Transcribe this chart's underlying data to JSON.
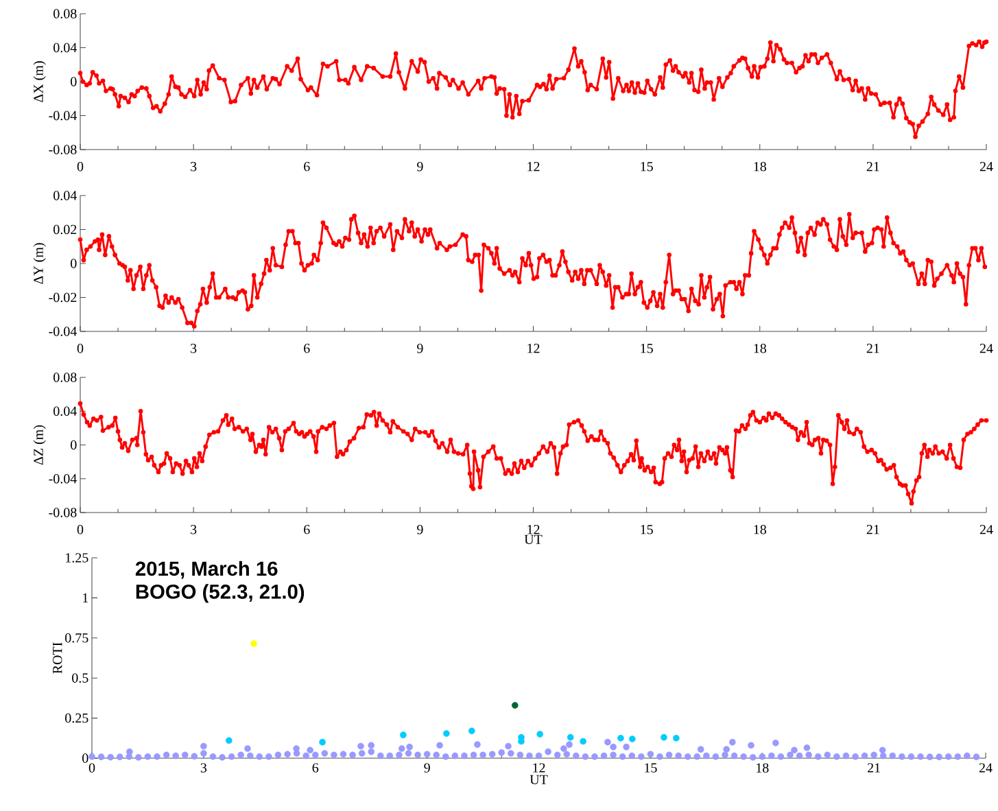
{
  "chart_data": [
    {
      "type": "line",
      "ylabel": "ΔX (m)",
      "xlim": [
        0,
        24
      ],
      "ylim": [
        -0.08,
        0.08
      ],
      "xticks": [
        0,
        3,
        6,
        9,
        12,
        15,
        18,
        21,
        24
      ],
      "yticks": [
        -0.08,
        -0.04,
        0,
        0.04,
        0.08
      ],
      "marker": "circle",
      "series": [
        {
          "color": "#ff0000",
          "x": [
            0,
            0.07,
            0.17,
            0.25,
            0.33,
            0.43,
            0.5,
            0.6,
            0.68,
            0.8,
            0.86,
            0.92,
            1.02,
            1.07,
            1.18,
            1.28,
            1.36,
            1.44,
            1.52,
            1.63,
            1.75,
            1.83,
            1.93,
            2.02,
            2.12,
            2.24,
            2.34,
            2.42,
            2.52,
            2.6,
            2.68,
            2.78,
            2.91,
            3.02,
            3.1,
            3.19,
            3.27,
            3.35,
            3.41,
            3.51,
            3.68,
            3.82,
            3.99,
            4.1,
            4.26,
            4.44,
            4.52,
            4.6,
            4.69,
            4.85,
            4.94,
            5.1,
            5.18,
            5.28,
            5.48,
            5.6,
            5.76,
            5.84,
            6.03,
            6.11,
            6.27,
            6.43,
            6.55,
            6.78,
            6.86,
            7.02,
            7.1,
            7.26,
            7.44,
            7.6,
            7.77,
            8.01,
            8.21,
            8.36,
            8.44,
            8.6,
            8.78,
            8.94,
            9.02,
            9.12,
            9.23,
            9.35,
            9.45,
            9.51,
            9.68,
            9.79,
            9.87,
            10.02,
            10.13,
            10.28,
            10.54,
            10.62,
            10.71,
            10.89,
            10.97,
            11.03,
            11.11,
            11.23,
            11.29,
            11.37,
            11.45,
            11.55,
            11.63,
            11.71,
            11.88,
            12.1,
            12.18,
            12.27,
            12.35,
            12.43,
            12.51,
            12.61,
            12.81,
            12.93,
            13.09,
            13.19,
            13.27,
            13.36,
            13.44,
            13.52,
            13.68,
            13.84,
            13.93,
            14.01,
            14.11,
            14.25,
            14.38,
            14.47,
            14.53,
            14.61,
            14.69,
            14.77,
            14.85,
            14.94,
            15.02,
            15.12,
            15.22,
            15.36,
            15.43,
            15.51,
            15.62,
            15.7,
            15.77,
            15.85,
            15.97,
            16.03,
            16.13,
            16.19,
            16.27,
            16.37,
            16.45,
            16.54,
            16.6,
            16.7,
            16.78,
            16.92,
            17.01,
            17.14,
            17.23,
            17.31,
            17.46,
            17.54,
            17.61,
            17.69,
            17.79,
            17.85,
            17.95,
            18.02,
            18.12,
            18.2,
            18.28,
            18.36,
            18.44,
            18.54,
            18.64,
            18.72,
            18.85,
            18.96,
            19.05,
            19.13,
            19.21,
            19.29,
            19.37,
            19.46,
            19.54,
            19.64,
            19.78,
            19.88,
            20.04,
            20.12,
            20.22,
            20.36,
            20.46,
            20.54,
            20.62,
            20.7,
            20.79,
            20.87,
            20.95,
            21.07,
            21.2,
            21.3,
            21.44,
            21.54,
            21.62,
            21.7,
            21.78,
            21.88,
            21.97,
            22.05,
            22.12,
            22.21,
            22.31,
            22.45,
            22.54,
            22.62,
            22.73,
            22.86,
            22.96,
            23.04,
            23.14,
            23.18,
            23.28,
            23.38,
            23.54,
            23.63,
            23.73,
            23.81,
            23.89,
            23.95,
            24
          ],
          "values": [
            0.01,
            0,
            -0.004,
            -0.002,
            0.011,
            0.007,
            -0.002,
            0.001,
            -0.011,
            -0.008,
            -0.009,
            -0.015,
            -0.029,
            -0.017,
            -0.019,
            -0.024,
            -0.015,
            -0.017,
            -0.011,
            -0.007,
            -0.008,
            -0.017,
            -0.031,
            -0.029,
            -0.035,
            -0.026,
            -0.015,
            0.006,
            -0.006,
            -0.007,
            -0.015,
            -0.018,
            -0.01,
            -0.017,
            0.002,
            -0.015,
            -0.001,
            -0.009,
            0.013,
            0.019,
            0.004,
            0.002,
            -0.024,
            -0.023,
            -0.004,
            0.004,
            -0.014,
            0.002,
            -0.007,
            0.006,
            -0.009,
            0.004,
            0.003,
            -0.003,
            0.018,
            0.013,
            0.027,
            0.003,
            -0.01,
            -0.007,
            -0.016,
            0.021,
            0.018,
            0.024,
            0.002,
            0.002,
            -0.002,
            0.017,
            0.002,
            0.018,
            0.016,
            0.006,
            0.006,
            0.033,
            0.011,
            -0.008,
            0.024,
            0.012,
            0.026,
            0.023,
            0,
            0.004,
            -0.008,
            0.01,
            0.005,
            -0.004,
            0.002,
            -0.008,
            -0.001,
            -0.015,
            0.001,
            -0.008,
            0.004,
            0.006,
            0.005,
            -0.014,
            -0.008,
            -0.009,
            -0.04,
            -0.015,
            -0.042,
            -0.017,
            -0.038,
            -0.023,
            -0.022,
            -0.004,
            -0.006,
            -0.003,
            -0.009,
            0.007,
            -0.008,
            0.003,
            0.004,
            0.014,
            0.039,
            0.018,
            0.024,
            0.011,
            -0.01,
            -0.004,
            -0.009,
            0.027,
            0.005,
            0.023,
            -0.02,
            0.004,
            -0.011,
            -0.004,
            -0.011,
            -0.001,
            -0.013,
            -0.002,
            -0.012,
            -0.013,
            0.001,
            -0.009,
            -0.015,
            0.005,
            -0.007,
            0.02,
            0.025,
            0.013,
            0.018,
            0.011,
            0.006,
            0.01,
            -0.001,
            0.01,
            -0.01,
            -0.012,
            0.014,
            -0.008,
            -0.001,
            -0.001,
            -0.021,
            0.004,
            -0.006,
            0.005,
            0.01,
            0.018,
            0.025,
            0.028,
            0.027,
            0.016,
            0.006,
            0.018,
            0.005,
            0.017,
            0.018,
            0.027,
            0.046,
            0.024,
            0.043,
            0.038,
            0.026,
            0.022,
            0.022,
            0.011,
            0.016,
            0.018,
            0.031,
            0.024,
            0.032,
            0.032,
            0.022,
            0.028,
            0.032,
            0.022,
            0.003,
            0.012,
            0.002,
            0.003,
            -0.01,
            0.001,
            -0.011,
            -0.008,
            -0.021,
            -0.008,
            -0.014,
            -0.015,
            -0.027,
            -0.025,
            -0.025,
            -0.042,
            -0.027,
            -0.02,
            -0.026,
            -0.043,
            -0.048,
            -0.05,
            -0.065,
            -0.052,
            -0.047,
            -0.038,
            -0.018,
            -0.027,
            -0.034,
            -0.039,
            -0.027,
            -0.045,
            -0.042,
            -0.011,
            0.006,
            -0.007,
            0.042,
            0.045,
            0.043,
            0.047,
            0.041,
            0.046,
            0.047
          ]
        }
      ]
    },
    {
      "type": "line",
      "ylabel": "ΔY (m)",
      "xlim": [
        0,
        24
      ],
      "ylim": [
        -0.04,
        0.04
      ],
      "xticks": [
        0,
        3,
        6,
        9,
        12,
        15,
        18,
        21,
        24
      ],
      "yticks": [
        -0.04,
        -0.02,
        0,
        0.02,
        0.04
      ],
      "marker": "circle",
      "series": [
        {
          "color": "#ff0000",
          "x": [
            0,
            0.09,
            0.17,
            0.27,
            0.39,
            0.47,
            0.5,
            0.58,
            0.66,
            0.76,
            0.84,
            0.92,
            1.04,
            1.12,
            1.18,
            1.26,
            1.33,
            1.41,
            1.49,
            1.59,
            1.67,
            1.75,
            1.83,
            1.91,
            2.01,
            2.1,
            2.18,
            2.26,
            2.34,
            2.42,
            2.52,
            2.6,
            2.7,
            2.84,
            2.94,
            3.02,
            3.1,
            3.18,
            3.25,
            3.35,
            3.43,
            3.51,
            3.6,
            3.68,
            3.84,
            3.92,
            4.04,
            4.12,
            4.2,
            4.3,
            4.36,
            4.44,
            4.53,
            4.6,
            4.69,
            4.79,
            4.87,
            4.93,
            5.02,
            5.1,
            5.18,
            5.34,
            5.44,
            5.52,
            5.62,
            5.7,
            5.78,
            5.86,
            5.94,
            6.03,
            6.13,
            6.19,
            6.29,
            6.37,
            6.43,
            6.52,
            6.71,
            6.78,
            6.86,
            6.94,
            7.02,
            7.12,
            7.18,
            7.26,
            7.36,
            7.44,
            7.52,
            7.61,
            7.69,
            7.77,
            7.85,
            7.95,
            8.05,
            8.21,
            8.29,
            8.39,
            8.52,
            8.6,
            8.71,
            8.78,
            8.86,
            8.94,
            9.04,
            9.13,
            9.21,
            9.27,
            9.45,
            9.52,
            9.71,
            9.79,
            9.94,
            10.13,
            10.22,
            10.28,
            10.38,
            10.46,
            10.55,
            10.62,
            10.69,
            10.81,
            10.89,
            10.97,
            11.03,
            11.11,
            11.23,
            11.37,
            11.45,
            11.52,
            11.63,
            11.71,
            11.8,
            11.88,
            11.94,
            12.01,
            12.1,
            12.16,
            12.26,
            12.35,
            12.43,
            12.51,
            12.59,
            12.69,
            12.77,
            12.85,
            12.93,
            13.03,
            13.11,
            13.19,
            13.27,
            13.35,
            13.43,
            13.52,
            13.68,
            13.76,
            13.84,
            13.93,
            14.01,
            14.1,
            14.17,
            14.25,
            14.36,
            14.46,
            14.53,
            14.6,
            14.69,
            14.77,
            14.85,
            14.93,
            15.02,
            15.1,
            15.18,
            15.28,
            15.36,
            15.43,
            15.51,
            15.6,
            15.7,
            15.77,
            15.85,
            15.93,
            16.01,
            16.11,
            16.19,
            16.29,
            16.38,
            16.45,
            16.53,
            16.6,
            16.68,
            16.76,
            16.86,
            16.94,
            17.02,
            17.09,
            17.22,
            17.31,
            17.38,
            17.46,
            17.54,
            17.61,
            17.71,
            17.77,
            17.85,
            17.96,
            18.04,
            18.12,
            18.2,
            18.28,
            18.36,
            18.44,
            18.52,
            18.59,
            18.67,
            18.78,
            18.85,
            18.93,
            19.01,
            19.09,
            19.19,
            19.27,
            19.35,
            19.45,
            19.53,
            19.61,
            19.68,
            19.78,
            19.86,
            19.96,
            20.04,
            20.12,
            20.2,
            20.29,
            20.37,
            20.46,
            20.54,
            20.7,
            20.79,
            20.87,
            20.97,
            21.03,
            21.12,
            21.22,
            21.28,
            21.37,
            21.46,
            21.54,
            21.64,
            21.72,
            21.8,
            21.88,
            21.97,
            22.05,
            22.2,
            22.29,
            22.37,
            22.45,
            22.54,
            22.62,
            22.7,
            22.81,
            22.96,
            23.08,
            23.14,
            23.22,
            23.3,
            23.38,
            23.46,
            23.54,
            23.63,
            23.71,
            23.79,
            23.87,
            23.96
          ],
          "values": [
            0.014,
            0.002,
            0.008,
            0.01,
            0.013,
            0.014,
            0.008,
            0.017,
            0.005,
            0.016,
            0.01,
            0.005,
            0,
            -0.001,
            -0.002,
            -0.01,
            -0.004,
            -0.015,
            -0.007,
            -0.002,
            -0.015,
            -0.007,
            -0.001,
            -0.01,
            -0.014,
            -0.025,
            -0.026,
            -0.019,
            -0.023,
            -0.02,
            -0.023,
            -0.021,
            -0.026,
            -0.035,
            -0.035,
            -0.037,
            -0.028,
            -0.024,
            -0.015,
            -0.023,
            -0.014,
            -0.006,
            -0.02,
            -0.02,
            -0.015,
            -0.02,
            -0.02,
            -0.021,
            -0.017,
            -0.016,
            -0.017,
            -0.027,
            -0.025,
            -0.007,
            -0.02,
            -0.012,
            -0.006,
            0.002,
            -0.004,
            0.009,
            -0.001,
            -0.002,
            0.011,
            0.019,
            0.019,
            0.012,
            0.012,
            0,
            -0.004,
            -0.001,
            0,
            0.005,
            0.002,
            0.012,
            0.024,
            0.021,
            0.012,
            0.011,
            0.013,
            0.01,
            0.015,
            0.014,
            0.026,
            0.028,
            0.018,
            0.012,
            0.017,
            0.01,
            0.021,
            0.012,
            0.019,
            0.021,
            0.016,
            0.023,
            0.008,
            0.019,
            0.015,
            0.026,
            0.019,
            0.024,
            0.016,
            0.02,
            0.013,
            0.02,
            0.017,
            0.02,
            0.009,
            0.012,
            0.008,
            0.01,
            0.011,
            0.017,
            0.016,
            0.002,
            0.001,
            0.005,
            0.005,
            -0.016,
            0.011,
            0.009,
            0.006,
            0,
            0.009,
            -0.003,
            -0.006,
            -0.004,
            -0.007,
            -0.005,
            -0.011,
            0.003,
            -0.001,
            0.006,
            -0.001,
            -0.009,
            -0.008,
            0.003,
            0.005,
            0.001,
            0.002,
            -0.007,
            -0.007,
            -0.001,
            0.007,
            0.001,
            -0.005,
            -0.01,
            -0.005,
            -0.009,
            -0.004,
            -0.012,
            -0.004,
            -0.004,
            -0.012,
            -0.001,
            -0.005,
            -0.013,
            -0.007,
            -0.026,
            -0.014,
            -0.014,
            -0.02,
            -0.018,
            -0.018,
            -0.006,
            -0.018,
            -0.014,
            -0.011,
            -0.023,
            -0.026,
            -0.022,
            -0.017,
            -0.025,
            -0.018,
            -0.026,
            -0.011,
            0.005,
            -0.018,
            -0.016,
            -0.016,
            -0.021,
            -0.021,
            -0.028,
            -0.015,
            -0.022,
            -0.024,
            -0.007,
            -0.02,
            -0.014,
            -0.008,
            -0.027,
            -0.021,
            -0.018,
            -0.031,
            -0.013,
            -0.011,
            -0.011,
            -0.015,
            -0.011,
            -0.018,
            -0.007,
            -0.007,
            0.006,
            0.019,
            0.014,
            0.009,
            0.005,
            0,
            0.005,
            0.009,
            0.009,
            0.017,
            0.021,
            0.024,
            0.021,
            0.027,
            0.018,
            0.007,
            0.015,
            0.005,
            0.018,
            0.021,
            0.017,
            0.024,
            0.023,
            0.026,
            0.023,
            0.014,
            0.01,
            0.008,
            0.026,
            0.016,
            0.011,
            0.029,
            0.015,
            0.018,
            0.018,
            0.007,
            0.011,
            0.012,
            0.02,
            0.021,
            0.02,
            0.01,
            0.027,
            0.018,
            0.012,
            0.01,
            0.006,
            0.007,
            0.002,
            -0.001,
            0,
            -0.012,
            -0.006,
            -0.012,
            0.002,
            0.001,
            -0.013,
            -0.009,
            -0.006,
            -0.001,
            -0.007,
            -0.011,
            0,
            -0.006,
            -0.008,
            -0.024,
            -0.001,
            0.009,
            0.009,
            0.002,
            0.009,
            -0.002
          ]
        }
      ]
    },
    {
      "type": "line",
      "xlabel": "UT",
      "ylabel": "ΔZ (m)",
      "xlim": [
        0,
        24
      ],
      "ylim": [
        -0.08,
        0.08
      ],
      "xticks": [
        0,
        3,
        6,
        9,
        12,
        15,
        18,
        21,
        24
      ],
      "yticks": [
        -0.08,
        -0.04,
        0,
        0.04,
        0.08
      ],
      "marker": "circle",
      "series": [
        {
          "color": "#ff0000",
          "x": [
            0,
            0.09,
            0.18,
            0.25,
            0.35,
            0.44,
            0.55,
            0.6,
            0.75,
            0.85,
            0.93,
            1.0,
            1.05,
            1.11,
            1.18,
            1.27,
            1.38,
            1.49,
            1.51,
            1.6,
            1.67,
            1.74,
            1.8,
            1.89,
            1.96,
            2.07,
            2.14,
            2.22,
            2.29,
            2.38,
            2.45,
            2.54,
            2.63,
            2.71,
            2.8,
            2.87,
            2.96,
            3.02,
            3.09,
            3.16,
            3.23,
            3.32,
            3.42,
            3.54,
            3.65,
            3.78,
            3.87,
            3.92,
            4.02,
            4.09,
            4.2,
            4.31,
            4.41,
            4.51,
            4.56,
            4.65,
            4.74,
            4.8,
            4.85,
            4.91,
            5.0,
            5.09,
            5.18,
            5.27,
            5.34,
            5.43,
            5.52,
            5.65,
            5.72,
            5.8,
            5.87,
            5.94,
            6.01,
            6.09,
            6.18,
            6.25,
            6.3,
            6.41,
            6.52,
            6.61,
            6.72,
            6.8,
            6.89,
            6.96,
            7.05,
            7.14,
            7.25,
            7.38,
            7.5,
            7.59,
            7.7,
            7.78,
            7.85,
            7.92,
            8.01,
            8.12,
            8.21,
            8.28,
            8.41,
            8.56,
            8.67,
            8.78,
            8.87,
            8.99,
            9.14,
            9.23,
            9.32,
            9.41,
            9.5,
            9.59,
            9.72,
            9.81,
            9.9,
            10.01,
            10.14,
            10.25,
            10.32,
            10.36,
            10.41,
            10.43,
            10.54,
            10.59,
            10.68,
            10.81,
            10.94,
            11.03,
            11.14,
            11.26,
            11.34,
            11.43,
            11.5,
            11.59,
            11.68,
            11.76,
            11.86,
            11.95,
            12.05,
            12.15,
            12.26,
            12.37,
            12.46,
            12.55,
            12.63,
            12.72,
            12.79,
            12.88,
            12.95,
            13.08,
            13.19,
            13.28,
            13.35,
            13.44,
            13.54,
            13.63,
            13.72,
            13.79,
            13.88,
            13.97,
            14.04,
            14.13,
            14.23,
            14.32,
            14.41,
            14.5,
            14.59,
            14.66,
            14.73,
            14.83,
            14.87,
            14.95,
            15.03,
            15.12,
            15.19,
            15.24,
            15.35,
            15.41,
            15.48,
            15.57,
            15.66,
            15.73,
            15.81,
            15.86,
            15.93,
            15.99,
            16.06,
            16.13,
            16.22,
            16.3,
            16.37,
            16.44,
            16.53,
            16.62,
            16.7,
            16.79,
            16.84,
            16.93,
            17.01,
            17.08,
            17.13,
            17.22,
            17.28,
            17.37,
            17.45,
            17.53,
            17.62,
            17.68,
            17.75,
            17.82,
            17.91,
            18.0,
            18.1,
            18.17,
            18.24,
            18.33,
            18.42,
            18.51,
            18.59,
            18.68,
            18.77,
            18.86,
            18.95,
            19.01,
            19.09,
            19.17,
            19.24,
            19.31,
            19.39,
            19.46,
            19.55,
            19.62,
            19.68,
            19.77,
            19.86,
            19.93,
            19.99,
            20.08,
            20.17,
            20.24,
            20.31,
            20.37,
            20.49,
            20.57,
            20.67,
            20.76,
            20.85,
            20.96,
            21.05,
            21.14,
            21.21,
            21.28,
            21.36,
            21.46,
            21.55,
            21.62,
            21.71,
            21.78,
            21.86,
            21.93,
            22.02,
            22.07,
            22.15,
            22.22,
            22.29,
            22.36,
            22.44,
            22.49,
            22.58,
            22.65,
            22.74,
            22.84,
            22.95,
            23.04,
            23.13,
            23.22,
            23.31,
            23.4,
            23.5,
            23.59,
            23.68,
            23.77,
            23.87,
            24
          ],
          "values": [
            0.049,
            0.036,
            0.027,
            0.023,
            0.031,
            0.029,
            0.033,
            0.017,
            0.021,
            0.023,
            0.032,
            0.016,
            0.006,
            -0.003,
            0.002,
            -0.007,
            0.006,
            0.008,
            0,
            0.04,
            0.015,
            -0.011,
            -0.018,
            -0.014,
            -0.024,
            -0.032,
            -0.024,
            -0.022,
            -0.01,
            -0.016,
            -0.032,
            -0.022,
            -0.024,
            -0.034,
            -0.019,
            -0.024,
            -0.032,
            -0.016,
            -0.026,
            -0.01,
            -0.019,
            -0.002,
            0.012,
            0.015,
            0.016,
            0.029,
            0.035,
            0.024,
            0.031,
            0.019,
            0.021,
            0.016,
            0.019,
            0.006,
            0.013,
            -0.008,
            0,
            -0.002,
            0.006,
            -0.011,
            0.021,
            0.015,
            0.019,
            0.008,
            -0.006,
            0.016,
            0.019,
            0.026,
            0.016,
            0.013,
            0.015,
            0.01,
            0.013,
            0.016,
            0.01,
            -0.008,
            0.016,
            0.021,
            0.019,
            0.023,
            0.026,
            -0.014,
            -0.008,
            -0.011,
            -0.006,
            0.004,
            0.008,
            0.02,
            0.021,
            0.036,
            0.035,
            0.039,
            0.023,
            0.037,
            0.029,
            0.024,
            0.015,
            0.028,
            0.021,
            0.016,
            0.013,
            0.006,
            0.019,
            0.015,
            0.015,
            0.011,
            0.016,
            0.005,
            -0.003,
            0.002,
            -0.008,
            0.006,
            -0.008,
            -0.01,
            -0.011,
            0,
            -0.034,
            -0.049,
            -0.052,
            -0.008,
            -0.03,
            -0.05,
            -0.014,
            -0.008,
            -0.002,
            -0.016,
            -0.016,
            -0.034,
            -0.03,
            -0.034,
            -0.022,
            -0.032,
            -0.019,
            -0.027,
            -0.019,
            -0.024,
            -0.016,
            -0.01,
            -0.002,
            -0.008,
            0.002,
            -0.003,
            -0.034,
            -0.01,
            -0.002,
            0,
            0.024,
            0.027,
            0.029,
            0.023,
            0.016,
            0.005,
            0.01,
            0.006,
            0.006,
            0.016,
            0.006,
            0.002,
            -0.01,
            -0.015,
            -0.024,
            -0.032,
            -0.024,
            -0.019,
            -0.011,
            -0.018,
            0.005,
            -0.026,
            -0.016,
            -0.03,
            -0.026,
            -0.032,
            -0.027,
            -0.044,
            -0.046,
            -0.044,
            -0.016,
            -0.01,
            -0.014,
            0,
            -0.006,
            0.006,
            -0.019,
            -0.008,
            -0.032,
            -0.018,
            -0.016,
            -0.002,
            -0.026,
            -0.01,
            -0.019,
            -0.008,
            -0.016,
            -0.01,
            -0.022,
            -0.003,
            -0.006,
            -0.01,
            -0.003,
            -0.03,
            -0.038,
            0.017,
            0.016,
            0.023,
            0.019,
            0.024,
            0.035,
            0.039,
            0.029,
            0.027,
            0.032,
            0.029,
            0.037,
            0.032,
            0.037,
            0.035,
            0.031,
            0.027,
            0.024,
            0.021,
            0.019,
            0.006,
            0.015,
            0.011,
            0.027,
            0.002,
            0,
            0.006,
            0.008,
            -0.01,
            0.006,
            0.005,
            0,
            -0.046,
            -0.026,
            0.035,
            0.027,
            0.019,
            0.029,
            0.015,
            0.013,
            0.019,
            0.015,
            -0.002,
            -0.008,
            -0.006,
            -0.01,
            -0.019,
            -0.018,
            -0.023,
            -0.029,
            -0.027,
            -0.024,
            -0.038,
            -0.046,
            -0.048,
            -0.048,
            -0.058,
            -0.069,
            -0.055,
            -0.042,
            -0.038,
            -0.01,
            0,
            -0.014,
            -0.006,
            -0.01,
            -0.002,
            -0.01,
            -0.008,
            -0.016,
            0,
            -0.016,
            -0.026,
            -0.027,
            0.006,
            0.013,
            0.015,
            0.019,
            0.024,
            0.029,
            0.029
          ]
        }
      ]
    },
    {
      "type": "scatter",
      "xlabel": "UT",
      "ylabel": "ROTI",
      "annotations": [
        "**2015, March 16**",
        "**BOGO (52.3, 21.0)**"
      ],
      "xlim": [
        0,
        24
      ],
      "ylim": [
        0,
        1.25
      ],
      "xticks": [
        0,
        3,
        6,
        9,
        12,
        15,
        18,
        21,
        24
      ],
      "yticks": [
        0,
        0.25,
        0.5,
        0.75,
        1,
        1.25
      ],
      "marker": "circle",
      "series": [
        {
          "color": "#9999ff",
          "x": [
            0,
            0.25,
            0.5,
            0.75,
            1.0,
            1.25,
            1.5,
            1.75,
            2.0,
            2.25,
            2.5,
            2.75,
            3.0,
            3.25,
            3.5,
            3.75,
            4.0,
            4.25,
            4.5,
            4.75,
            5.0,
            5.25,
            5.5,
            5.75,
            6.0,
            6.25,
            6.5,
            6.75,
            7.0,
            7.25,
            7.5,
            7.75,
            8.0,
            8.25,
            8.5,
            8.75,
            9.0,
            9.25,
            9.5,
            9.75,
            10.0,
            10.25,
            10.5,
            10.75,
            11.0,
            11.25,
            11.5,
            11.75,
            12.0,
            12.25,
            12.5,
            12.75,
            13.0,
            13.25,
            13.5,
            13.75,
            14.0,
            14.25,
            14.5,
            14.75,
            15.0,
            15.25,
            15.5,
            15.75,
            16.0,
            16.25,
            16.5,
            16.75,
            17.0,
            17.25,
            17.5,
            17.75,
            18.0,
            18.25,
            18.5,
            18.75,
            19.0,
            19.25,
            19.5,
            19.75,
            20.0,
            20.25,
            20.5,
            20.75,
            21.0,
            21.25,
            21.5,
            21.75,
            22.0,
            22.25,
            22.5,
            22.75,
            23.0,
            23.25,
            23.5,
            23.75,
            3.0,
            4.18,
            1.01,
            5.49,
            5.86,
            7.22,
            7.5,
            8.32,
            8.53,
            9.34,
            10.35,
            11.18,
            12.67,
            12.82,
            13.85,
            14.0,
            14.35,
            16.35,
            17.04,
            17.2,
            17.7,
            18.36,
            18.86,
            19.2,
            21.23
          ],
          "values": [
            0.01,
            0.008,
            0.006,
            0.008,
            0.01,
            0.005,
            0.01,
            0.01,
            0.02,
            0.015,
            0.02,
            0.012,
            0.03,
            0.01,
            0.005,
            0.01,
            0.02,
            0.015,
            0.01,
            0.01,
            0.02,
            0.025,
            0.03,
            0.015,
            0.02,
            0.03,
            0.02,
            0.025,
            0.02,
            0.03,
            0.04,
            0.015,
            0.015,
            0.02,
            0.03,
            0.02,
            0.025,
            0.02,
            0.01,
            0.015,
            0.015,
            0.02,
            0.02,
            0.025,
            0.035,
            0.03,
            0.02,
            0.015,
            0.015,
            0.04,
            0.02,
            0.025,
            0.015,
            0.01,
            0.01,
            0.015,
            0.02,
            0.01,
            0.015,
            0.01,
            0.025,
            0.01,
            0.02,
            0.015,
            0.01,
            0.01,
            0.015,
            0.01,
            0.02,
            0.015,
            0.01,
            0.005,
            0.01,
            0.015,
            0.01,
            0.02,
            0.015,
            0.02,
            0.01,
            0.02,
            0.01,
            0.015,
            0.01,
            0.015,
            0.02,
            0.015,
            0.015,
            0.01,
            0.01,
            0.01,
            0.008,
            0.008,
            0.01,
            0.01,
            0.015,
            0.008,
            0.075,
            0.06,
            0.04,
            0.06,
            0.05,
            0.075,
            0.08,
            0.06,
            0.07,
            0.08,
            0.085,
            0.075,
            0.06,
            0.085,
            0.1,
            0.07,
            0.07,
            0.055,
            0.055,
            0.1,
            0.08,
            0.095,
            0.05,
            0.065,
            0.05
          ]
        },
        {
          "color": "#00ccff",
          "x": [
            3.68,
            6.19,
            8.36,
            9.52,
            10.2,
            11.53,
            11.53,
            12.03,
            12.85,
            13.19,
            14.2,
            14.51,
            15.36,
            15.69
          ],
          "values": [
            0.11,
            0.1,
            0.145,
            0.154,
            0.17,
            0.13,
            0.105,
            0.15,
            0.13,
            0.105,
            0.125,
            0.12,
            0.13,
            0.125
          ]
        },
        {
          "color": "#006633",
          "x": [
            11.36
          ],
          "values": [
            0.33
          ]
        },
        {
          "color": "#ffff00",
          "x": [
            4.35
          ],
          "values": [
            0.715
          ]
        }
      ]
    }
  ]
}
